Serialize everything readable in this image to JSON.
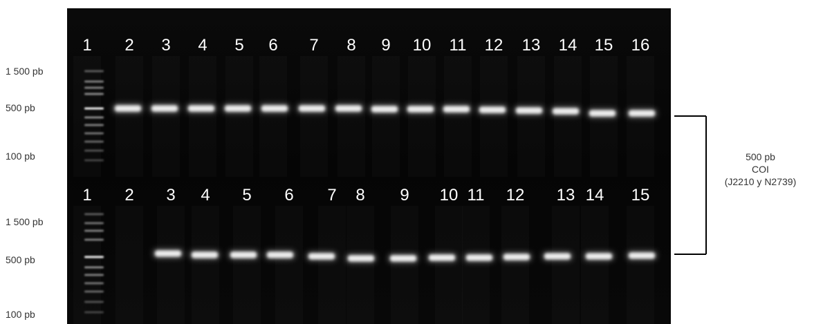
{
  "gel_top": {
    "lanes": [
      "1",
      "2",
      "3",
      "4",
      "5",
      "6",
      "7",
      "8",
      "9",
      "10",
      "11",
      "12",
      "13",
      "14",
      "15",
      "16"
    ],
    "markers": [
      "1 500 pb",
      "500 pb",
      "100 pb"
    ],
    "band_present": [
      false,
      true,
      true,
      true,
      true,
      true,
      true,
      true,
      true,
      true,
      true,
      true,
      true,
      true,
      true,
      true
    ]
  },
  "gel_bottom": {
    "lanes": [
      "1",
      "2",
      "3",
      "4",
      "5",
      "6",
      "7",
      "8",
      "9",
      "10",
      "11",
      "12",
      "13",
      "14",
      "15"
    ],
    "markers": [
      "1 500 pb",
      "500 pb",
      "100 pb"
    ],
    "band_present": [
      false,
      false,
      true,
      true,
      true,
      true,
      true,
      true,
      true,
      true,
      true,
      true,
      true,
      true,
      true
    ]
  },
  "annotation": {
    "size": "500 pb",
    "gene": "COI",
    "primers": "(J2210 y N2739)"
  },
  "colors": {
    "gel_background": "#060606",
    "band": "#f4f4f4",
    "bracket": "#000000",
    "text": "#333333"
  }
}
